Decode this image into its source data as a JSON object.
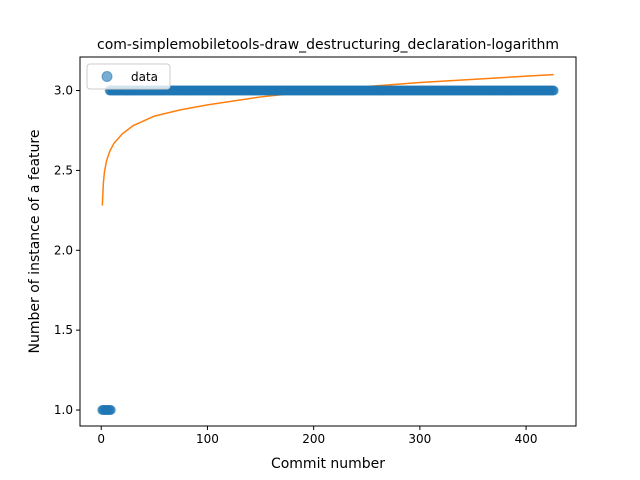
{
  "chart_data": {
    "type": "scatter",
    "title": "com-simplemobiletools-draw_destructuring_declaration-logarithm",
    "xlabel": "Commit number",
    "ylabel": "Number of instance of a feature",
    "xlim": [
      -20,
      447
    ],
    "ylim": [
      0.9,
      3.21
    ],
    "x_ticks": [
      0,
      100,
      200,
      300,
      400
    ],
    "y_ticks": [
      1.0,
      1.5,
      2.0,
      2.5,
      3.0
    ],
    "x_tick_labels": [
      "0",
      "100",
      "200",
      "300",
      "400"
    ],
    "y_tick_labels": [
      "1.0",
      "1.5",
      "2.0",
      "2.5",
      "3.0"
    ],
    "legend": {
      "position": "upper-left",
      "entries": [
        "data"
      ]
    },
    "grid": false,
    "series": [
      {
        "name": "data",
        "kind": "scatter",
        "color": "#1f77b4",
        "segments": [
          {
            "x_start": 1,
            "x_end": 9,
            "y": 1.0
          },
          {
            "x_start": 8,
            "x_end": 426,
            "y": 3.0
          }
        ]
      },
      {
        "kind": "line",
        "color": "#ff7f0e",
        "model": "logarithmic",
        "x_range": [
          1,
          426
        ],
        "points": [
          [
            1,
            2.28
          ],
          [
            2,
            2.42
          ],
          [
            3,
            2.49
          ],
          [
            5,
            2.56
          ],
          [
            8,
            2.62
          ],
          [
            12,
            2.67
          ],
          [
            20,
            2.73
          ],
          [
            30,
            2.78
          ],
          [
            50,
            2.84
          ],
          [
            75,
            2.88
          ],
          [
            100,
            2.91
          ],
          [
            150,
            2.96
          ],
          [
            200,
            2.995
          ],
          [
            250,
            3.025
          ],
          [
            300,
            3.05
          ],
          [
            350,
            3.07
          ],
          [
            400,
            3.09
          ],
          [
            426,
            3.1
          ]
        ]
      }
    ]
  }
}
